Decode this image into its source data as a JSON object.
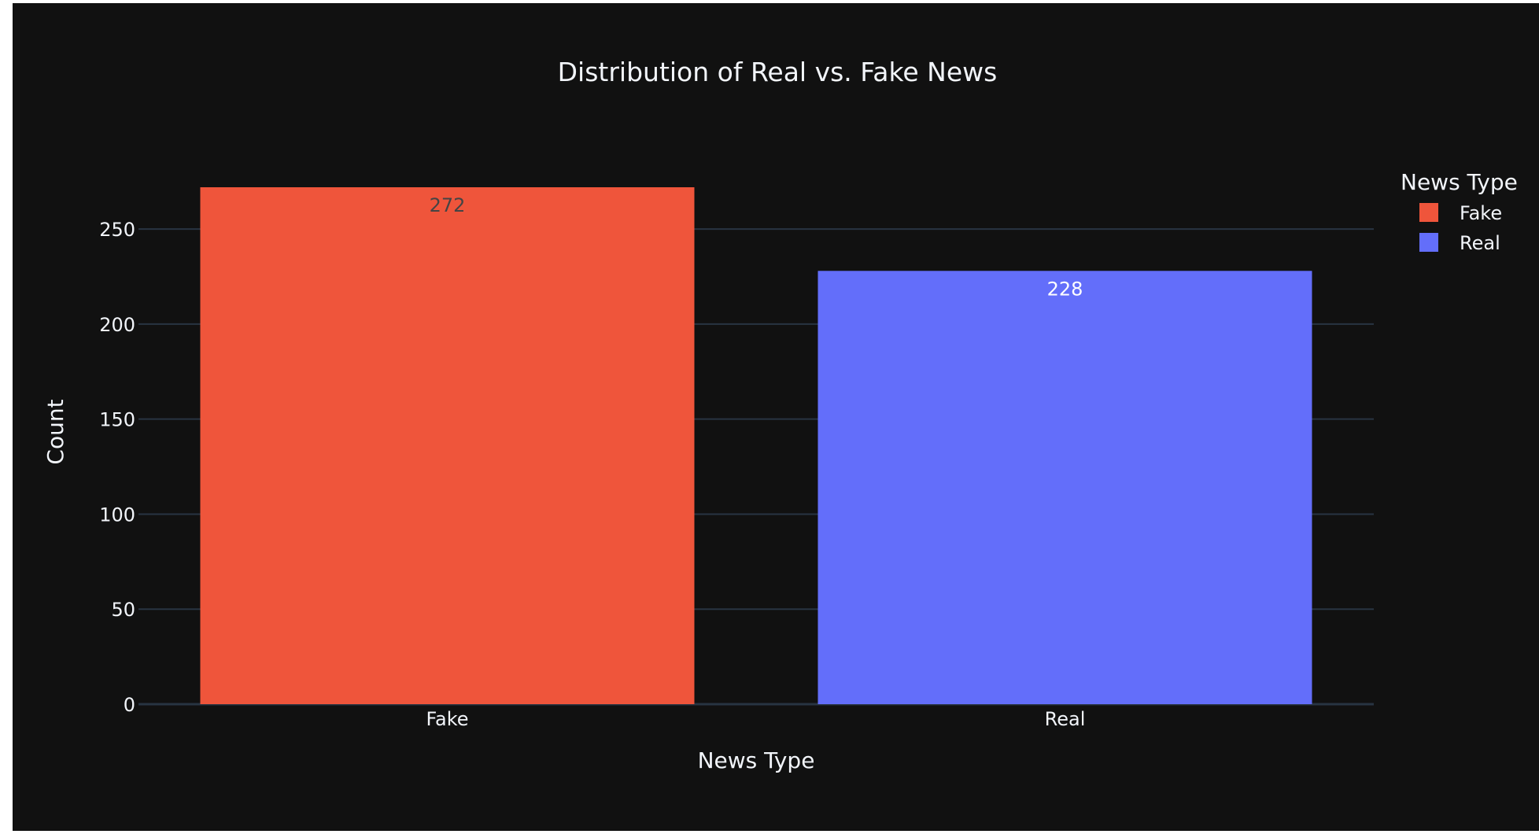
{
  "chart_data": {
    "type": "bar",
    "title": "Distribution of Real vs. Fake News",
    "xlabel": "News Type",
    "ylabel": "Count",
    "categories": [
      "Fake",
      "Real"
    ],
    "values": [
      272,
      228
    ],
    "data_labels": [
      "272",
      "228"
    ],
    "ylim": [
      0,
      272
    ],
    "yticks": [
      0,
      50,
      100,
      150,
      200,
      250
    ],
    "ytick_labels": [
      "0",
      "50",
      "100",
      "150",
      "200",
      "250"
    ],
    "grid": true,
    "legend": {
      "title": "News Type",
      "placement": "right",
      "items": [
        {
          "label": "Fake",
          "color": "#ef553b"
        },
        {
          "label": "Real",
          "color": "#636efa"
        }
      ]
    },
    "colors": {
      "background": "#111111",
      "grid": "#283442",
      "text": "#f2f5fa",
      "fake": "#ef553b",
      "real": "#636efa",
      "label_on_fake": "#444444",
      "label_on_real": "#ffffff"
    }
  }
}
